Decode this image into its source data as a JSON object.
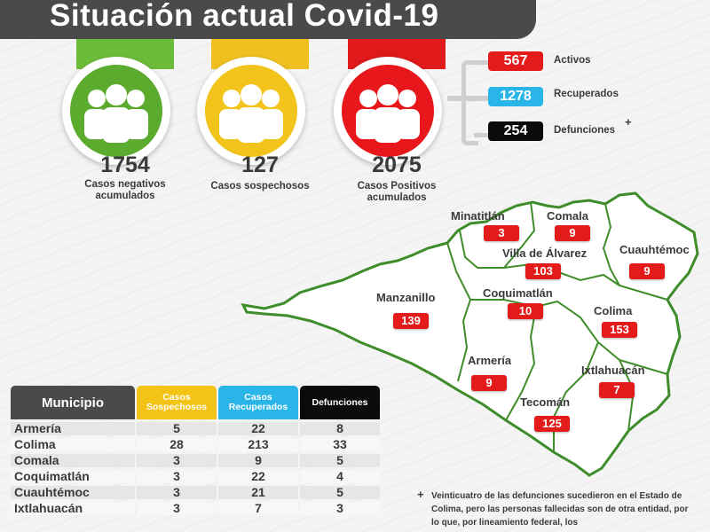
{
  "title": "Situación actual Covid-19",
  "summary": [
    {
      "value": "1754",
      "label": "Casos negativos acumulados",
      "color": "#5aab2e",
      "tab_color": "#6cbc3a"
    },
    {
      "value": "127",
      "label": "Casos sospechosos",
      "color": "#f2c31a",
      "tab_color": "#f0c020"
    },
    {
      "value": "2075",
      "label": "Casos Positivos acumulados",
      "color": "#e8171b",
      "tab_color": "#e01a1a"
    }
  ],
  "positive_breakdown": [
    {
      "value": "567",
      "label": "Activos",
      "color": "#e31b1b"
    },
    {
      "value": "1278",
      "label": "Recuperados",
      "color": "#29b5e8"
    },
    {
      "value": "254",
      "label": "Defunciones",
      "color": "#0b0b0b"
    }
  ],
  "footnote_mark": "+",
  "map_labels": [
    {
      "name": "Minatitlán",
      "value": "3"
    },
    {
      "name": "Comala",
      "value": "9"
    },
    {
      "name": "Villa de Álvarez",
      "value": "103"
    },
    {
      "name": "Cuauhtémoc",
      "value": "9"
    },
    {
      "name": "Manzanillo",
      "value": "139"
    },
    {
      "name": "Coquimatlán",
      "value": "10"
    },
    {
      "name": "Colima",
      "value": "153"
    },
    {
      "name": "Armería",
      "value": "9"
    },
    {
      "name": "Ixtlahuacán",
      "value": "7"
    },
    {
      "name": "Tecomán",
      "value": "125"
    }
  ],
  "table": {
    "headers": {
      "municipio": "Municipio",
      "sospechosos": "Casos Sospechosos",
      "recuperados": "Casos Recuperados",
      "defunciones": "Defunciones"
    },
    "rows": [
      {
        "municipio": "Armería",
        "sospechosos": "5",
        "recuperados": "22",
        "defunciones": "8"
      },
      {
        "municipio": "Colima",
        "sospechosos": "28",
        "recuperados": "213",
        "defunciones": "33"
      },
      {
        "municipio": "Comala",
        "sospechosos": "3",
        "recuperados": "9",
        "defunciones": "5"
      },
      {
        "municipio": "Coquimatlán",
        "sospechosos": "3",
        "recuperados": "22",
        "defunciones": "4"
      },
      {
        "municipio": "Cuauhtémoc",
        "sospechosos": "3",
        "recuperados": "21",
        "defunciones": "5"
      },
      {
        "municipio": "Ixtlahuacán",
        "sospechosos": "3",
        "recuperados": "7",
        "defunciones": "3"
      }
    ]
  },
  "footnote": "Veinticuatro de las defunciones sucedieron en el Estado de Colima, pero las personas fallecidas son de otra entidad, por lo que, por lineamiento federal, los"
}
